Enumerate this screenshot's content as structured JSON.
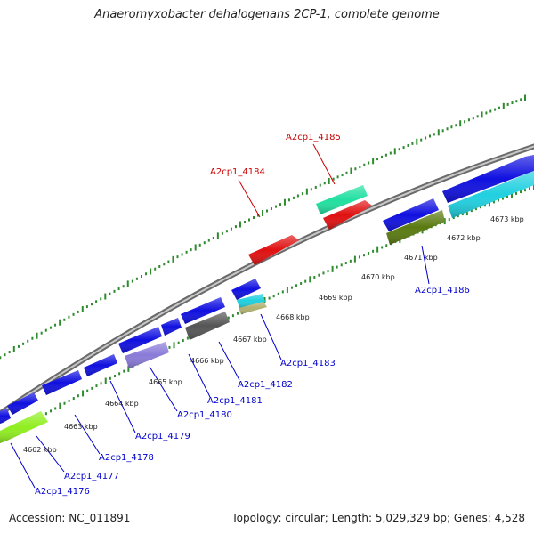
{
  "title": "Anaeromyxobacter dehalogenans 2CP-1, complete genome",
  "footer": {
    "accession": "Accession: NC_011891",
    "topology": "Topology: circular; Length: 5,029,329 bp; Genes: 4,528"
  },
  "colors": {
    "backbone": "#8a8a8a",
    "tick": "#2e8b2e",
    "label_forward": "#cc0000",
    "label_reverse": "#0000cc",
    "leader": "#3333cc"
  },
  "axis_labels": [
    "4662 kbp",
    "4663 kbp",
    "4664 kbp",
    "4665 kbp",
    "4666 kbp",
    "4667 kbp",
    "4668 kbp",
    "4669 kbp",
    "4670 kbp",
    "4671 kbp",
    "4672 kbp",
    "4673 kbp"
  ],
  "gene_labels": [
    {
      "text": "A2cp1_4185",
      "strand": "forward"
    },
    {
      "text": "A2cp1_4184",
      "strand": "forward"
    },
    {
      "text": "A2cp1_4186",
      "strand": "reverse"
    },
    {
      "text": "A2cp1_4183",
      "strand": "reverse"
    },
    {
      "text": "A2cp1_4182",
      "strand": "reverse"
    },
    {
      "text": "A2cp1_4181",
      "strand": "reverse"
    },
    {
      "text": "A2cp1_4180",
      "strand": "reverse"
    },
    {
      "text": "A2cp1_4179",
      "strand": "reverse"
    },
    {
      "text": "A2cp1_4178",
      "strand": "reverse"
    },
    {
      "text": "A2cp1_4177",
      "strand": "reverse"
    },
    {
      "text": "A2cp1_4176",
      "strand": "reverse"
    }
  ],
  "feature_colors": {
    "cds_reverse": "#1010e0",
    "cds_forward": "#e01010",
    "cog_teal": "#20e0a0",
    "cog_cyan": "#20d0e0",
    "cog_olive": "#5a7a10",
    "cog_lavender": "#8a7ad8",
    "cog_gray": "#555555",
    "cog_khaki": "#b0b070",
    "cog_lime": "#90ee20"
  }
}
